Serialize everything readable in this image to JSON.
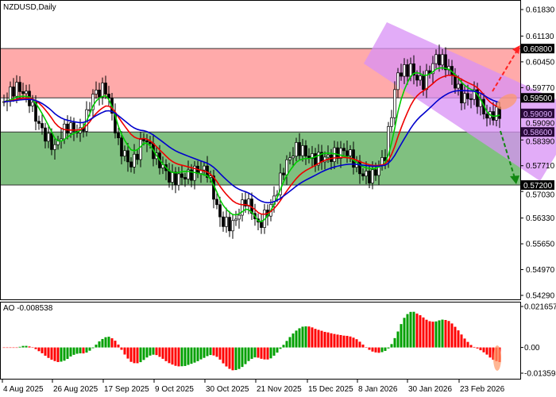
{
  "chart_data": [
    {
      "type": "candlestick",
      "title": "NZDUSD,Daily",
      "ylim": [
        0.5429,
        0.6183
      ],
      "y_ticks": [
        "0.61830",
        "0.61130",
        "0.60450",
        "0.59770",
        "0.59090",
        "0.58390",
        "0.57710",
        "0.57030",
        "0.56330",
        "0.55650",
        "0.54970",
        "0.54290"
      ],
      "x_ticks": [
        "4 Aug 2025",
        "26 Aug 2025",
        "17 Sep 2025",
        "9 Oct 2025",
        "30 Oct 2025",
        "21 Nov 2025",
        "15 Dec 2025",
        "8 Jan 2026",
        "30 Jan 2026",
        "23 Feb 2026"
      ],
      "approx_closes_every_4_bars": [
        0.594,
        0.596,
        0.595,
        0.588,
        0.581,
        0.586,
        0.587,
        0.597,
        0.596,
        0.582,
        0.579,
        0.585,
        0.577,
        0.574,
        0.576,
        0.575,
        0.574,
        0.564,
        0.563,
        0.567,
        0.56,
        0.568,
        0.577,
        0.58,
        0.579,
        0.581,
        0.58,
        0.579,
        0.576,
        0.576,
        0.579,
        0.6,
        0.604,
        0.6,
        0.604,
        0.602,
        0.597,
        0.596,
        0.588,
        0.591
      ],
      "moving_averages": [
        {
          "color": "#00cc00"
        },
        {
          "color": "#ee0000"
        },
        {
          "color": "#0000cc"
        }
      ],
      "levels": [
        {
          "label": "0.60800",
          "value": 0.608,
          "bg": "#000000",
          "fg": "#ffffff"
        },
        {
          "label": "0.59500",
          "value": 0.595,
          "bg": "#000000",
          "fg": "#ffffff"
        },
        {
          "label": "0.59090",
          "value": 0.5909,
          "bg": "#2a0a3a",
          "fg": "#e0b0ff"
        },
        {
          "label": "0.58600",
          "value": 0.586,
          "bg": "#2a0a3a",
          "fg": "#e0b0ff"
        },
        {
          "label": "0.57200",
          "value": 0.572,
          "bg": "#000000",
          "fg": "#ffffff"
        }
      ],
      "zones": [
        {
          "from": 0.595,
          "to": 0.608,
          "color": "#ffaaaa"
        },
        {
          "from": 0.572,
          "to": 0.586,
          "color": "#80c080"
        }
      ],
      "channel_color": "#d890f5",
      "targets": {
        "up": 0.608,
        "down": 0.572
      }
    },
    {
      "type": "bar",
      "title": "AO -0.008538",
      "ylim": [
        -0.013594,
        0.021657
      ],
      "y_ticks": [
        "0.021657",
        "0.00",
        "-0.013594"
      ],
      "colors": {
        "up": "#00a000",
        "down": "#ff0000"
      }
    }
  ]
}
